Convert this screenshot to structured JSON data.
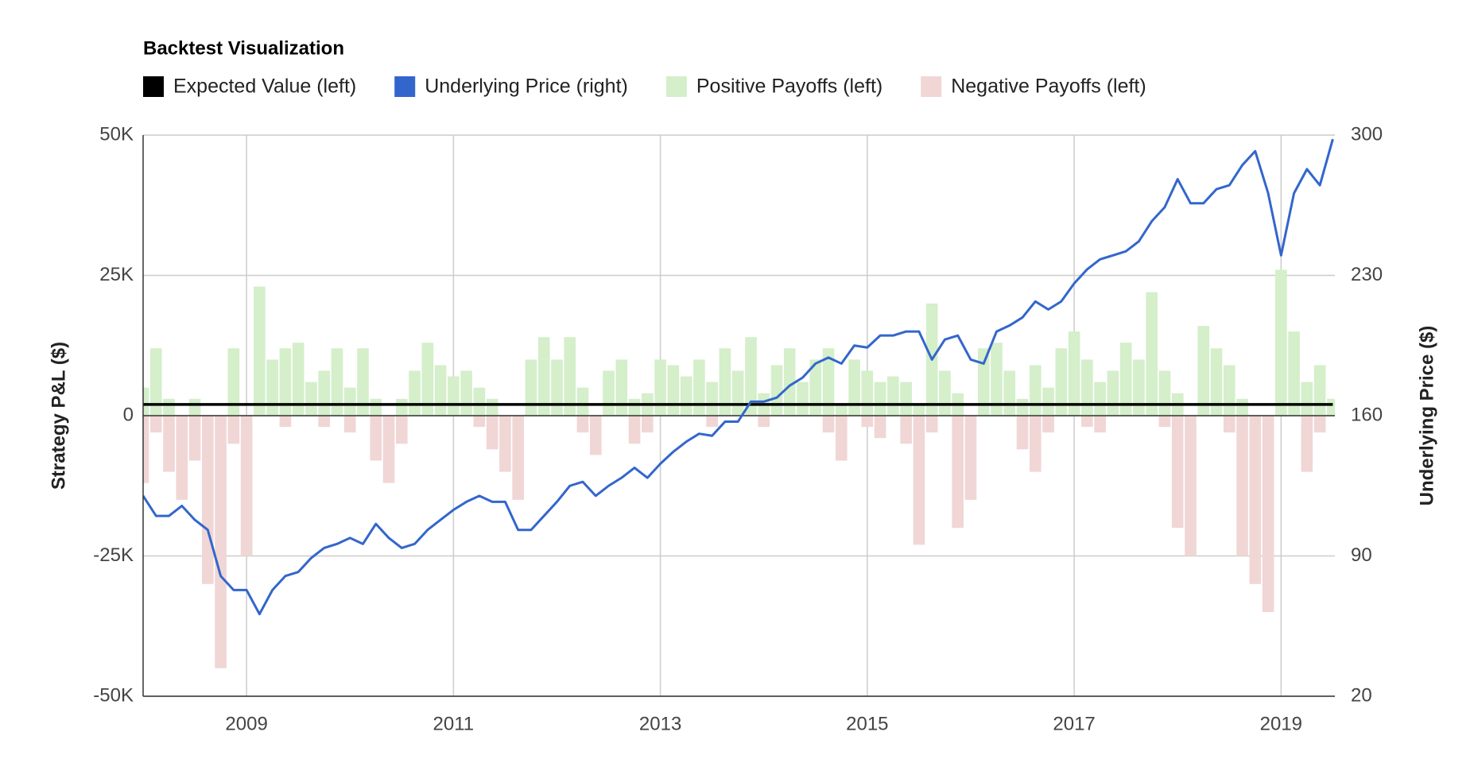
{
  "chart_data": {
    "type": "combo",
    "title": "Backtest Visualization",
    "ylabel": "Strategy P&L ($)",
    "y2label": "Underlying Price ($)",
    "x": [
      2008,
      2008.125,
      2008.25,
      2008.375,
      2008.5,
      2008.625,
      2008.75,
      2008.875,
      2009,
      2009.125,
      2009.25,
      2009.375,
      2009.5,
      2009.625,
      2009.75,
      2009.875,
      2010,
      2010.125,
      2010.25,
      2010.375,
      2010.5,
      2010.625,
      2010.75,
      2010.875,
      2011,
      2011.125,
      2011.25,
      2011.375,
      2011.5,
      2011.625,
      2011.75,
      2011.875,
      2012,
      2012.125,
      2012.25,
      2012.375,
      2012.5,
      2012.625,
      2012.75,
      2012.875,
      2013,
      2013.125,
      2013.25,
      2013.375,
      2013.5,
      2013.625,
      2013.75,
      2013.875,
      2014,
      2014.125,
      2014.25,
      2014.375,
      2014.5,
      2014.625,
      2014.75,
      2014.875,
      2015,
      2015.125,
      2015.25,
      2015.375,
      2015.5,
      2015.625,
      2015.75,
      2015.875,
      2016,
      2016.125,
      2016.25,
      2016.375,
      2016.5,
      2016.625,
      2016.75,
      2016.875,
      2017,
      2017.125,
      2017.25,
      2017.375,
      2017.5,
      2017.625,
      2017.75,
      2017.875,
      2018,
      2018.125,
      2018.25,
      2018.375,
      2018.5,
      2018.625,
      2018.75,
      2018.875,
      2019,
      2019.125,
      2019.25,
      2019.375,
      2019.5
    ],
    "xlim": [
      2008,
      2019.52
    ],
    "xticks": [
      2009,
      2011,
      2013,
      2015,
      2017,
      2019
    ],
    "ylim": [
      -50000,
      50000
    ],
    "yticks": [
      {
        "value": 50000,
        "label": "50K"
      },
      {
        "value": 25000,
        "label": "25K"
      },
      0,
      {
        "value": -25000,
        "label": "-25K"
      },
      {
        "value": -50000,
        "label": "-50K"
      }
    ],
    "y2lim": [
      20,
      300
    ],
    "y2ticks": [
      300,
      230,
      160,
      90,
      20
    ],
    "grid": true,
    "series": [
      {
        "name": "Expected Value (left)",
        "type": "line",
        "color": "#000000",
        "axis": "y",
        "values": [
          2000,
          2000,
          2000,
          2000,
          2000,
          2000,
          2000,
          2000,
          2000,
          2000,
          2000,
          2000,
          2000,
          2000,
          2000,
          2000,
          2000,
          2000,
          2000,
          2000,
          2000,
          2000,
          2000,
          2000,
          2000,
          2000,
          2000,
          2000,
          2000,
          2000,
          2000,
          2000,
          2000,
          2000,
          2000,
          2000,
          2000,
          2000,
          2000,
          2000,
          2000,
          2000,
          2000,
          2000,
          2000,
          2000,
          2000,
          2000,
          2000,
          2000,
          2000,
          2000,
          2000,
          2000,
          2000,
          2000,
          2000,
          2000,
          2000,
          2000,
          2000,
          2000,
          2000,
          2000,
          2000,
          2000,
          2000,
          2000,
          2000,
          2000,
          2000,
          2000,
          2000,
          2000,
          2000,
          2000,
          2000,
          2000,
          2000,
          2000,
          2000,
          2000,
          2000,
          2000,
          2000,
          2000,
          2000,
          2000,
          2000,
          2000,
          2000,
          2000,
          2000
        ]
      },
      {
        "name": "Underlying Price (right)",
        "type": "line",
        "color": "#3366cc",
        "axis": "y2",
        "values": [
          120,
          110,
          110,
          115,
          108,
          103,
          80,
          73,
          73,
          61,
          73,
          80,
          82,
          89,
          94,
          96,
          99,
          96,
          106,
          99,
          94,
          96,
          103,
          108,
          113,
          117,
          120,
          117,
          117,
          103,
          103,
          110,
          117,
          125,
          127,
          120,
          125,
          129,
          134,
          129,
          136,
          142,
          147,
          151,
          150,
          157,
          157,
          167,
          167,
          169,
          175,
          179,
          186,
          189,
          186,
          195,
          194,
          200,
          200,
          202,
          202,
          188,
          198,
          200,
          188,
          186,
          202,
          205,
          209,
          217,
          213,
          217,
          226,
          233,
          238,
          240,
          242,
          247,
          257,
          264,
          278,
          266,
          266,
          273,
          275,
          285,
          292,
          271,
          240,
          271,
          283,
          275,
          298
        ]
      },
      {
        "name": "Positive Payoffs (left)",
        "type": "bar",
        "color": "#d4efca",
        "axis": "y",
        "values": [
          5000,
          12000,
          3000,
          0,
          3000,
          0,
          0,
          12000,
          0,
          23000,
          10000,
          12000,
          13000,
          6000,
          8000,
          12000,
          5000,
          12000,
          3000,
          0,
          3000,
          8000,
          13000,
          9000,
          7000,
          8000,
          5000,
          3000,
          0,
          0,
          10000,
          14000,
          10000,
          14000,
          5000,
          0,
          8000,
          10000,
          3000,
          4000,
          10000,
          9000,
          7000,
          10000,
          6000,
          12000,
          8000,
          14000,
          4000,
          9000,
          12000,
          6000,
          10000,
          12000,
          2000,
          10000,
          8000,
          6000,
          7000,
          6000,
          2000,
          20000,
          8000,
          4000,
          0,
          12000,
          13000,
          8000,
          3000,
          9000,
          5000,
          12000,
          15000,
          10000,
          6000,
          8000,
          13000,
          10000,
          22000,
          8000,
          4000,
          0,
          16000,
          12000,
          9000,
          3000,
          0,
          0,
          26000,
          15000,
          6000,
          9000,
          3000
        ]
      },
      {
        "name": "Negative Payoffs (left)",
        "type": "bar",
        "color": "#f1d6d6",
        "axis": "y",
        "values": [
          -12000,
          -3000,
          -10000,
          -15000,
          -8000,
          -30000,
          -45000,
          -5000,
          -25000,
          0,
          0,
          -2000,
          0,
          0,
          -2000,
          0,
          -3000,
          0,
          -8000,
          -12000,
          -5000,
          0,
          0,
          0,
          0,
          0,
          -2000,
          -6000,
          -10000,
          -15000,
          0,
          0,
          0,
          0,
          -3000,
          -7000,
          0,
          0,
          -5000,
          -3000,
          0,
          0,
          0,
          0,
          -2000,
          0,
          0,
          0,
          -2000,
          0,
          0,
          0,
          0,
          -3000,
          -8000,
          0,
          -2000,
          -4000,
          0,
          -5000,
          -23000,
          -3000,
          0,
          -20000,
          -15000,
          0,
          0,
          0,
          -6000,
          -10000,
          -3000,
          0,
          0,
          -2000,
          -3000,
          0,
          0,
          0,
          0,
          -2000,
          -20000,
          -25000,
          0,
          0,
          -3000,
          -25000,
          -30000,
          -35000,
          0,
          0,
          -10000,
          -3000,
          0
        ]
      }
    ]
  }
}
